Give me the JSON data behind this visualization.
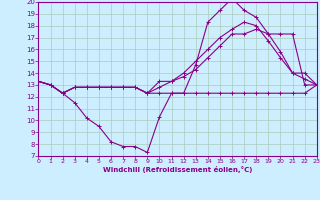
{
  "background_color": "#cceeff",
  "grid_color": "#aaccbb",
  "line_color": "#880088",
  "xlabel": "Windchill (Refroidissement éolien,°C)",
  "xlim": [
    0,
    23
  ],
  "ylim": [
    7,
    20
  ],
  "xticks": [
    0,
    1,
    2,
    3,
    4,
    5,
    6,
    7,
    8,
    9,
    10,
    11,
    12,
    13,
    14,
    15,
    16,
    17,
    18,
    19,
    20,
    21,
    22,
    23
  ],
  "yticks": [
    7,
    8,
    9,
    10,
    11,
    12,
    13,
    14,
    15,
    16,
    17,
    18,
    19,
    20
  ],
  "series": [
    {
      "x": [
        0,
        1,
        2,
        3,
        4,
        5,
        6,
        7,
        8,
        9,
        10,
        11,
        12,
        13,
        14,
        15,
        16,
        17,
        18,
        19,
        20,
        21,
        22,
        23
      ],
      "y": [
        13.3,
        13.0,
        12.3,
        12.8,
        12.8,
        12.8,
        12.8,
        12.8,
        12.8,
        12.3,
        12.3,
        12.3,
        12.3,
        12.3,
        12.3,
        12.3,
        12.3,
        12.3,
        12.3,
        12.3,
        12.3,
        12.3,
        12.3,
        13.0
      ]
    },
    {
      "x": [
        0,
        1,
        2,
        3,
        4,
        5,
        6,
        7,
        8,
        9,
        10,
        11,
        12,
        13,
        14,
        15,
        16,
        17,
        18,
        19,
        20,
        21,
        22,
        23
      ],
      "y": [
        13.3,
        13.0,
        12.3,
        11.5,
        10.2,
        9.5,
        8.2,
        7.8,
        7.8,
        7.3,
        10.3,
        12.3,
        12.3,
        14.7,
        18.3,
        19.3,
        20.3,
        19.3,
        18.7,
        17.3,
        15.8,
        14.0,
        14.0,
        13.0
      ]
    },
    {
      "x": [
        0,
        1,
        2,
        3,
        4,
        5,
        6,
        7,
        8,
        9,
        10,
        11,
        12,
        13,
        14,
        15,
        16,
        17,
        18,
        19,
        20,
        21,
        22,
        23
      ],
      "y": [
        13.3,
        13.0,
        12.3,
        12.8,
        12.8,
        12.8,
        12.8,
        12.8,
        12.8,
        12.3,
        12.8,
        13.3,
        13.7,
        14.3,
        15.3,
        16.3,
        17.3,
        17.3,
        17.7,
        17.3,
        17.3,
        17.3,
        13.0,
        13.0
      ]
    },
    {
      "x": [
        0,
        1,
        2,
        3,
        4,
        5,
        6,
        7,
        8,
        9,
        10,
        11,
        12,
        13,
        14,
        15,
        16,
        17,
        18,
        19,
        20,
        21,
        22,
        23
      ],
      "y": [
        13.3,
        13.0,
        12.3,
        12.8,
        12.8,
        12.8,
        12.8,
        12.8,
        12.8,
        12.3,
        13.3,
        13.3,
        14.0,
        15.0,
        16.0,
        17.0,
        17.7,
        18.3,
        18.0,
        16.7,
        15.3,
        14.0,
        13.5,
        13.0
      ]
    }
  ]
}
